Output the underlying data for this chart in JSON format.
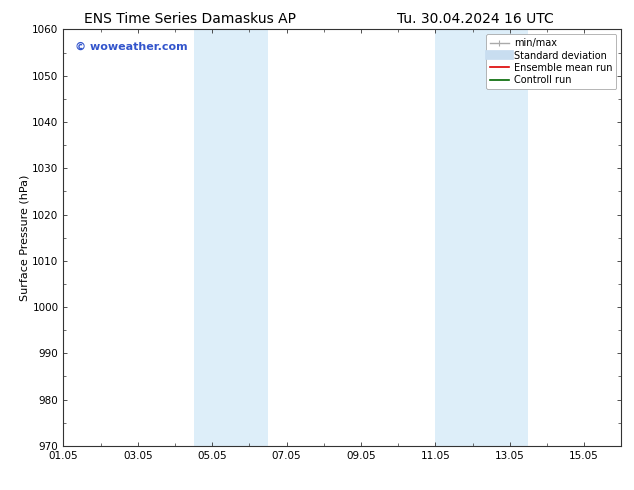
{
  "title_left": "ENS Time Series Damaskus AP",
  "title_right": "Tu. 30.04.2024 16 UTC",
  "ylabel": "Surface Pressure (hPa)",
  "ylim": [
    970,
    1060
  ],
  "yticks": [
    970,
    980,
    990,
    1000,
    1010,
    1020,
    1030,
    1040,
    1050,
    1060
  ],
  "xlim": [
    0,
    15
  ],
  "xtick_labels": [
    "01.05",
    "03.05",
    "05.05",
    "07.05",
    "09.05",
    "11.05",
    "13.05",
    "15.05"
  ],
  "xtick_positions": [
    0,
    2,
    4,
    6,
    8,
    10,
    12,
    14
  ],
  "shaded_regions": [
    {
      "xstart": 3.5,
      "xend": 4.3,
      "color": "#ddeef9"
    },
    {
      "xstart": 4.3,
      "xend": 5.5,
      "color": "#ddeef9"
    },
    {
      "xstart": 10.0,
      "xend": 11.0,
      "color": "#ddeef9"
    },
    {
      "xstart": 11.0,
      "xend": 12.5,
      "color": "#ddeef9"
    }
  ],
  "watermark": "© woweather.com",
  "watermark_color": "#3355cc",
  "watermark_fontsize": 8,
  "bg_color": "#ffffff",
  "legend_items": [
    {
      "label": "min/max",
      "color": "#aaaaaa",
      "linewidth": 1.0
    },
    {
      "label": "Standard deviation",
      "color": "#c8ddf0",
      "linewidth": 7
    },
    {
      "label": "Ensemble mean run",
      "color": "#dd0000",
      "linewidth": 1.2
    },
    {
      "label": "Controll run",
      "color": "#006600",
      "linewidth": 1.2
    }
  ],
  "title_fontsize": 10,
  "axis_label_fontsize": 8,
  "tick_fontsize": 7.5,
  "legend_fontsize": 7
}
